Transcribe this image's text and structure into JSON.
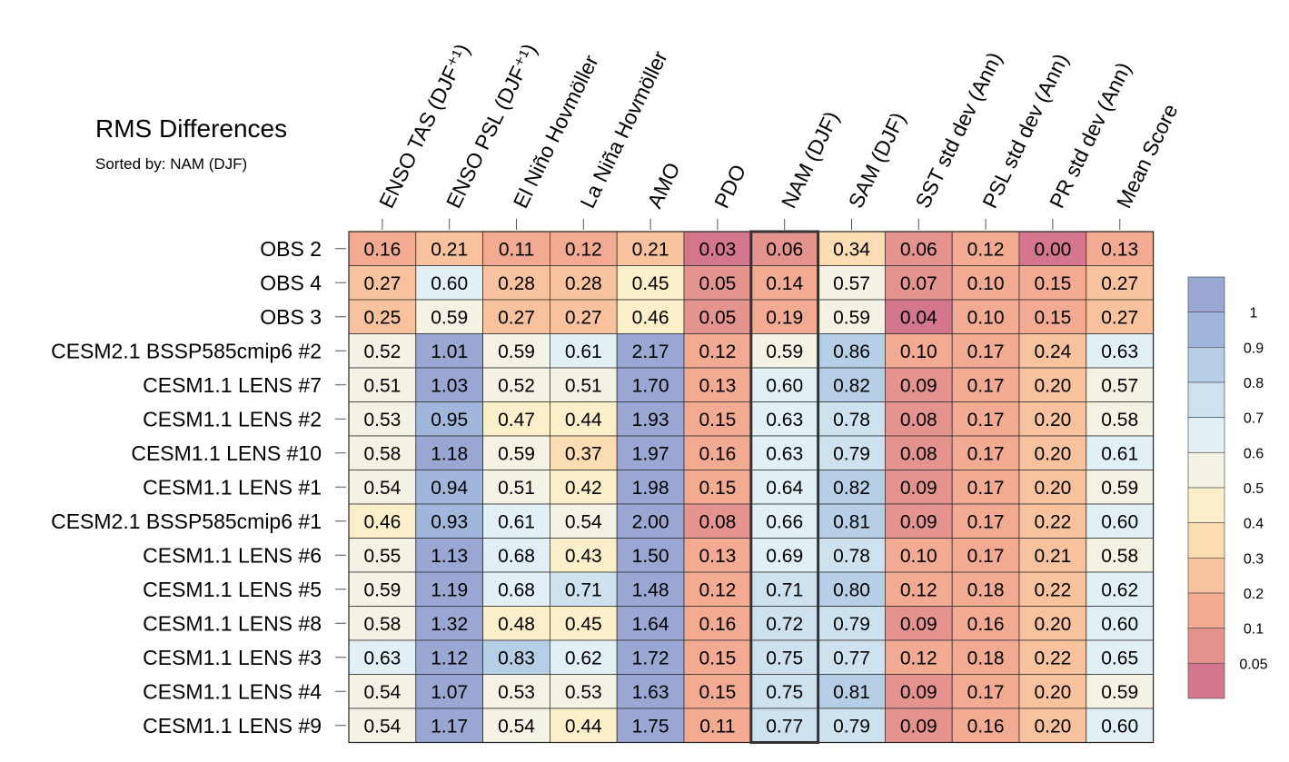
{
  "chart_data": {
    "type": "heatmap",
    "title": "RMS Differences",
    "subtitle": "Sorted by: NAM (DJF)",
    "columns": [
      "ENSO TAS (DJF⁺¹)",
      "ENSO PSL (DJF⁺¹)",
      "El Niño Hovmöller",
      "La Niña Hovmöller",
      "AMO",
      "PDO",
      "NAM (DJF)",
      "SAM (DJF)",
      "SST std dev (Ann)",
      "PSL std dev (Ann)",
      "PR std dev (Ann)",
      "Mean Score"
    ],
    "highlighted_column": "NAM (DJF)",
    "rows": [
      "OBS 2",
      "OBS 4",
      "OBS 3",
      "CESM2.1 BSSP585cmip6 #2",
      "CESM1.1 LENS #7",
      "CESM1.1 LENS #2",
      "CESM1.1 LENS #10",
      "CESM1.1 LENS #1",
      "CESM2.1 BSSP585cmip6 #1",
      "CESM1.1 LENS #6",
      "CESM1.1 LENS #5",
      "CESM1.1 LENS #8",
      "CESM1.1 LENS #3",
      "CESM1.1 LENS #4",
      "CESM1.1 LENS #9"
    ],
    "values": [
      [
        0.16,
        0.21,
        0.11,
        0.12,
        0.21,
        0.03,
        0.06,
        0.34,
        0.06,
        0.12,
        0.0,
        0.13
      ],
      [
        0.27,
        0.6,
        0.28,
        0.28,
        0.45,
        0.05,
        0.14,
        0.57,
        0.07,
        0.1,
        0.15,
        0.27
      ],
      [
        0.25,
        0.59,
        0.27,
        0.27,
        0.46,
        0.05,
        0.19,
        0.59,
        0.04,
        0.1,
        0.15,
        0.27
      ],
      [
        0.52,
        1.01,
        0.59,
        0.61,
        2.17,
        0.12,
        0.59,
        0.86,
        0.1,
        0.17,
        0.24,
        0.63
      ],
      [
        0.51,
        1.03,
        0.52,
        0.51,
        1.7,
        0.13,
        0.6,
        0.82,
        0.09,
        0.17,
        0.2,
        0.57
      ],
      [
        0.53,
        0.95,
        0.47,
        0.44,
        1.93,
        0.15,
        0.63,
        0.78,
        0.08,
        0.17,
        0.2,
        0.58
      ],
      [
        0.58,
        1.18,
        0.59,
        0.37,
        1.97,
        0.16,
        0.63,
        0.79,
        0.08,
        0.17,
        0.2,
        0.61
      ],
      [
        0.54,
        0.94,
        0.51,
        0.42,
        1.98,
        0.15,
        0.64,
        0.82,
        0.09,
        0.17,
        0.2,
        0.59
      ],
      [
        0.46,
        0.93,
        0.61,
        0.54,
        2.0,
        0.08,
        0.66,
        0.81,
        0.09,
        0.17,
        0.22,
        0.6
      ],
      [
        0.55,
        1.13,
        0.68,
        0.43,
        1.5,
        0.13,
        0.69,
        0.78,
        0.1,
        0.17,
        0.21,
        0.58
      ],
      [
        0.59,
        1.19,
        0.68,
        0.71,
        1.48,
        0.12,
        0.71,
        0.8,
        0.12,
        0.18,
        0.22,
        0.62
      ],
      [
        0.58,
        1.32,
        0.48,
        0.45,
        1.64,
        0.16,
        0.72,
        0.79,
        0.09,
        0.16,
        0.2,
        0.6
      ],
      [
        0.63,
        1.12,
        0.83,
        0.62,
        1.72,
        0.15,
        0.75,
        0.77,
        0.12,
        0.18,
        0.22,
        0.65
      ],
      [
        0.54,
        1.07,
        0.53,
        0.53,
        1.63,
        0.15,
        0.75,
        0.81,
        0.09,
        0.17,
        0.2,
        0.59
      ],
      [
        0.54,
        1.17,
        0.54,
        0.44,
        1.75,
        0.11,
        0.77,
        0.79,
        0.09,
        0.16,
        0.2,
        0.6
      ]
    ],
    "colorbar": {
      "boundaries": [
        0.05,
        0.1,
        0.2,
        0.3,
        0.4,
        0.5,
        0.6,
        0.7,
        0.8,
        0.9,
        1
      ],
      "labels": [
        "0.05",
        "0.1",
        "0.2",
        "0.3",
        "0.4",
        "0.5",
        "0.6",
        "0.7",
        "0.8",
        "0.9",
        "1"
      ],
      "colors": [
        "#d4768d",
        "#e5938e",
        "#f2aa92",
        "#f7c29d",
        "#fbdcb3",
        "#fbefc9",
        "#f3f2e5",
        "#e2eff4",
        "#cde2ee",
        "#b6cfe6",
        "#a0b6db",
        "#9aa7d2"
      ]
    }
  }
}
